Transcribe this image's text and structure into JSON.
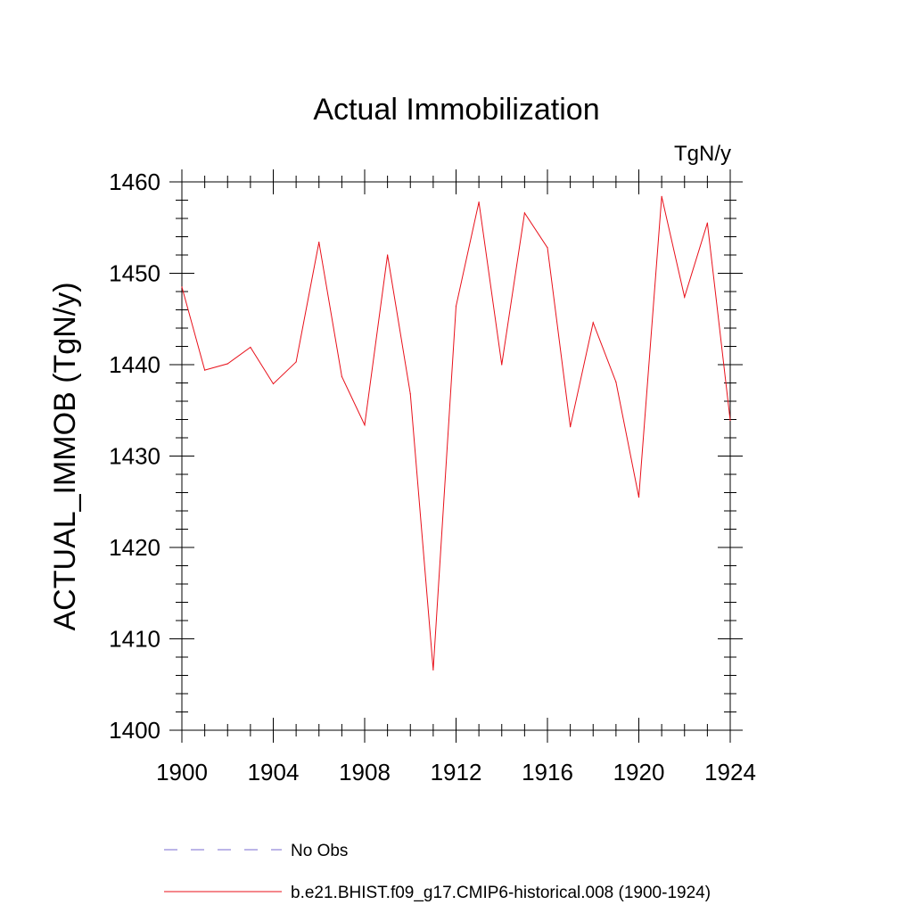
{
  "chart_data": {
    "type": "line",
    "title": "Actual Immobilization",
    "units_label": "TgN/y",
    "ylabel": "ACTUAL_IMMOB  (TgN/y)",
    "xlabel": "",
    "xlim": [
      1900,
      1924
    ],
    "ylim": [
      1400,
      1460
    ],
    "x_ticks": [
      1900,
      1904,
      1908,
      1912,
      1916,
      1920,
      1924
    ],
    "y_ticks": [
      1400,
      1410,
      1420,
      1430,
      1440,
      1450,
      1460
    ],
    "x_minor_step": 1,
    "y_minor_step": 2,
    "series": [
      {
        "name": "b.e21.BHIST.f09_g17.CMIP6-historical.008 (1900-1924)",
        "color": "#e8101a",
        "style": "solid",
        "x": [
          1900,
          1901,
          1902,
          1903,
          1904,
          1905,
          1906,
          1907,
          1908,
          1909,
          1910,
          1911,
          1912,
          1913,
          1914,
          1915,
          1916,
          1917,
          1918,
          1919,
          1920,
          1921,
          1922,
          1923,
          1924
        ],
        "values": [
          1448.5,
          1439.4,
          1440.1,
          1441.9,
          1437.9,
          1440.3,
          1453.4,
          1438.7,
          1433.4,
          1452.0,
          1436.8,
          1406.6,
          1446.4,
          1457.8,
          1440.0,
          1456.6,
          1452.8,
          1433.2,
          1444.6,
          1438.1,
          1425.5,
          1458.4,
          1447.4,
          1455.5,
          1433.9
        ]
      }
    ],
    "legend": [
      {
        "label": "No Obs",
        "color": "#7a6bd0",
        "style": "dashed"
      },
      {
        "label": "b.e21.BHIST.f09_g17.CMIP6-historical.008 (1900-1924)",
        "color": "#e8101a",
        "style": "solid"
      }
    ],
    "legend_position": "bottom-left"
  }
}
